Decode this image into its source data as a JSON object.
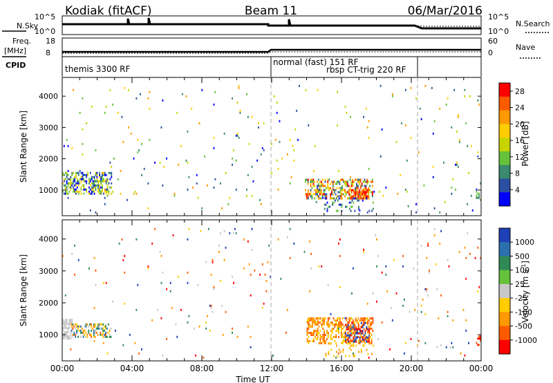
{
  "header": {
    "station": "Kodiak (fitACF)",
    "beam": "Beam 11",
    "date": "06/Mar/2016"
  },
  "top_panels": {
    "nsky_label": "N.Sky",
    "nsearch_label": "N.Search",
    "noise_ticks": [
      "10^5",
      "10^0"
    ],
    "freq_label_1": "Freq.",
    "freq_label_2": "[MHz]",
    "freq_ticks": [
      "18",
      "8"
    ],
    "nave_ticks": [
      "60",
      "0"
    ],
    "nave_label": "Nave",
    "cpid_label": "CPID",
    "cpid_segments": [
      {
        "label": "themis 3300 RF",
        "start_hour": 0.0,
        "end_hour": 12.0
      },
      {
        "label": "normal (fast) 151 RF",
        "start_hour": 12.0,
        "end_hour": 13.7
      },
      {
        "label": "rbsp CT-trig 220 RF",
        "start_hour": 13.7,
        "end_hour": 20.6
      }
    ]
  },
  "chart_data": [
    {
      "type": "heatmap",
      "parameter": "Power",
      "xlabel": "",
      "ylabel": "Slant Range [km]",
      "xlim_hours": [
        0,
        24
      ],
      "ylim": [
        180,
        4600
      ],
      "y_ticks": [
        1000,
        2000,
        3000,
        4000
      ],
      "colorbar": {
        "label": "Power [dB]",
        "range": [
          0,
          30
        ],
        "ticks": [
          "4",
          "8",
          "12",
          "16",
          "20",
          "24",
          "28"
        ],
        "colors": [
          "#0000ff",
          "#2b4fa3",
          "#3a8a6e",
          "#66c23a",
          "#c8d400",
          "#ffcc00",
          "#ff9900",
          "#ff5a00",
          "#ff0000"
        ]
      },
      "scatter_clusters": [
        {
          "hours": [
            0.0,
            2.8
          ],
          "range_km": [
            850,
            1550
          ],
          "density": 0.55,
          "palette": [
            0,
            1,
            2,
            3,
            4,
            5
          ]
        },
        {
          "hours": [
            13.9,
            17.8
          ],
          "range_km": [
            700,
            1350
          ],
          "density": 0.5,
          "palette": [
            1,
            2,
            3,
            4,
            5,
            6,
            7,
            8
          ]
        },
        {
          "hours": [
            16.4,
            17.6
          ],
          "range_km": [
            700,
            1000
          ],
          "density": 0.7,
          "palette": [
            6,
            7,
            8
          ]
        },
        {
          "hours": [
            15.0,
            17.8
          ],
          "range_km": [
            300,
            700
          ],
          "density": 0.15,
          "palette": [
            0,
            1,
            2,
            3
          ]
        },
        {
          "hours": [
            0.0,
            24.0
          ],
          "range_km": [
            250,
            4300
          ],
          "density": 0.012,
          "palette": [
            0,
            1,
            2,
            3,
            4,
            5,
            6
          ]
        },
        {
          "hours": [
            23.7,
            24.0
          ],
          "range_km": [
            650,
            950
          ],
          "density": 0.45,
          "palette": [
            2,
            3
          ]
        }
      ]
    },
    {
      "type": "heatmap",
      "parameter": "Velocity",
      "xlabel": "Time UT",
      "ylabel": "Slant Range [km]",
      "x_ticks": [
        "00:00",
        "04:00",
        "08:00",
        "12:00",
        "16:00",
        "20:00",
        "00:00"
      ],
      "xlim_hours": [
        0,
        24
      ],
      "ylim": [
        180,
        4600
      ],
      "y_ticks": [
        1000,
        2000,
        3000,
        4000
      ],
      "colorbar": {
        "label": "Velocity [m s^-1]",
        "range": [
          -1200,
          1200
        ],
        "ticks": [
          "1000",
          "500",
          "100",
          "25",
          "-25",
          "-100",
          "-500",
          "-1000"
        ],
        "colors": [
          "#1e3fb5",
          "#2b6fae",
          "#2f8a55",
          "#66c23a",
          "#c8c8c8",
          "#ffcc00",
          "#ff9900",
          "#ff5a00",
          "#ff0000"
        ]
      },
      "scatter_clusters": [
        {
          "hours": [
            0.0,
            0.6
          ],
          "range_km": [
            850,
            1500
          ],
          "density": 0.7,
          "palette": [
            4
          ]
        },
        {
          "hours": [
            0.5,
            2.8
          ],
          "range_km": [
            900,
            1350
          ],
          "density": 0.5,
          "palette": [
            1,
            2,
            4,
            5,
            6,
            7
          ]
        },
        {
          "hours": [
            14.0,
            17.8
          ],
          "range_km": [
            700,
            1500
          ],
          "density": 0.5,
          "palette": [
            5,
            6,
            7
          ]
        },
        {
          "hours": [
            16.2,
            17.6
          ],
          "range_km": [
            750,
            1400
          ],
          "density": 0.5,
          "palette": [
            0,
            1,
            8,
            7
          ]
        },
        {
          "hours": [
            15.0,
            17.8
          ],
          "range_km": [
            300,
            700
          ],
          "density": 0.12,
          "palette": [
            5,
            6
          ]
        },
        {
          "hours": [
            0.0,
            24.0
          ],
          "range_km": [
            250,
            4300
          ],
          "density": 0.012,
          "palette": [
            0,
            2,
            4,
            5,
            6,
            7,
            8
          ]
        },
        {
          "hours": [
            23.7,
            24.0
          ],
          "range_km": [
            650,
            950
          ],
          "density": 0.45,
          "palette": [
            7,
            8
          ]
        }
      ]
    }
  ]
}
